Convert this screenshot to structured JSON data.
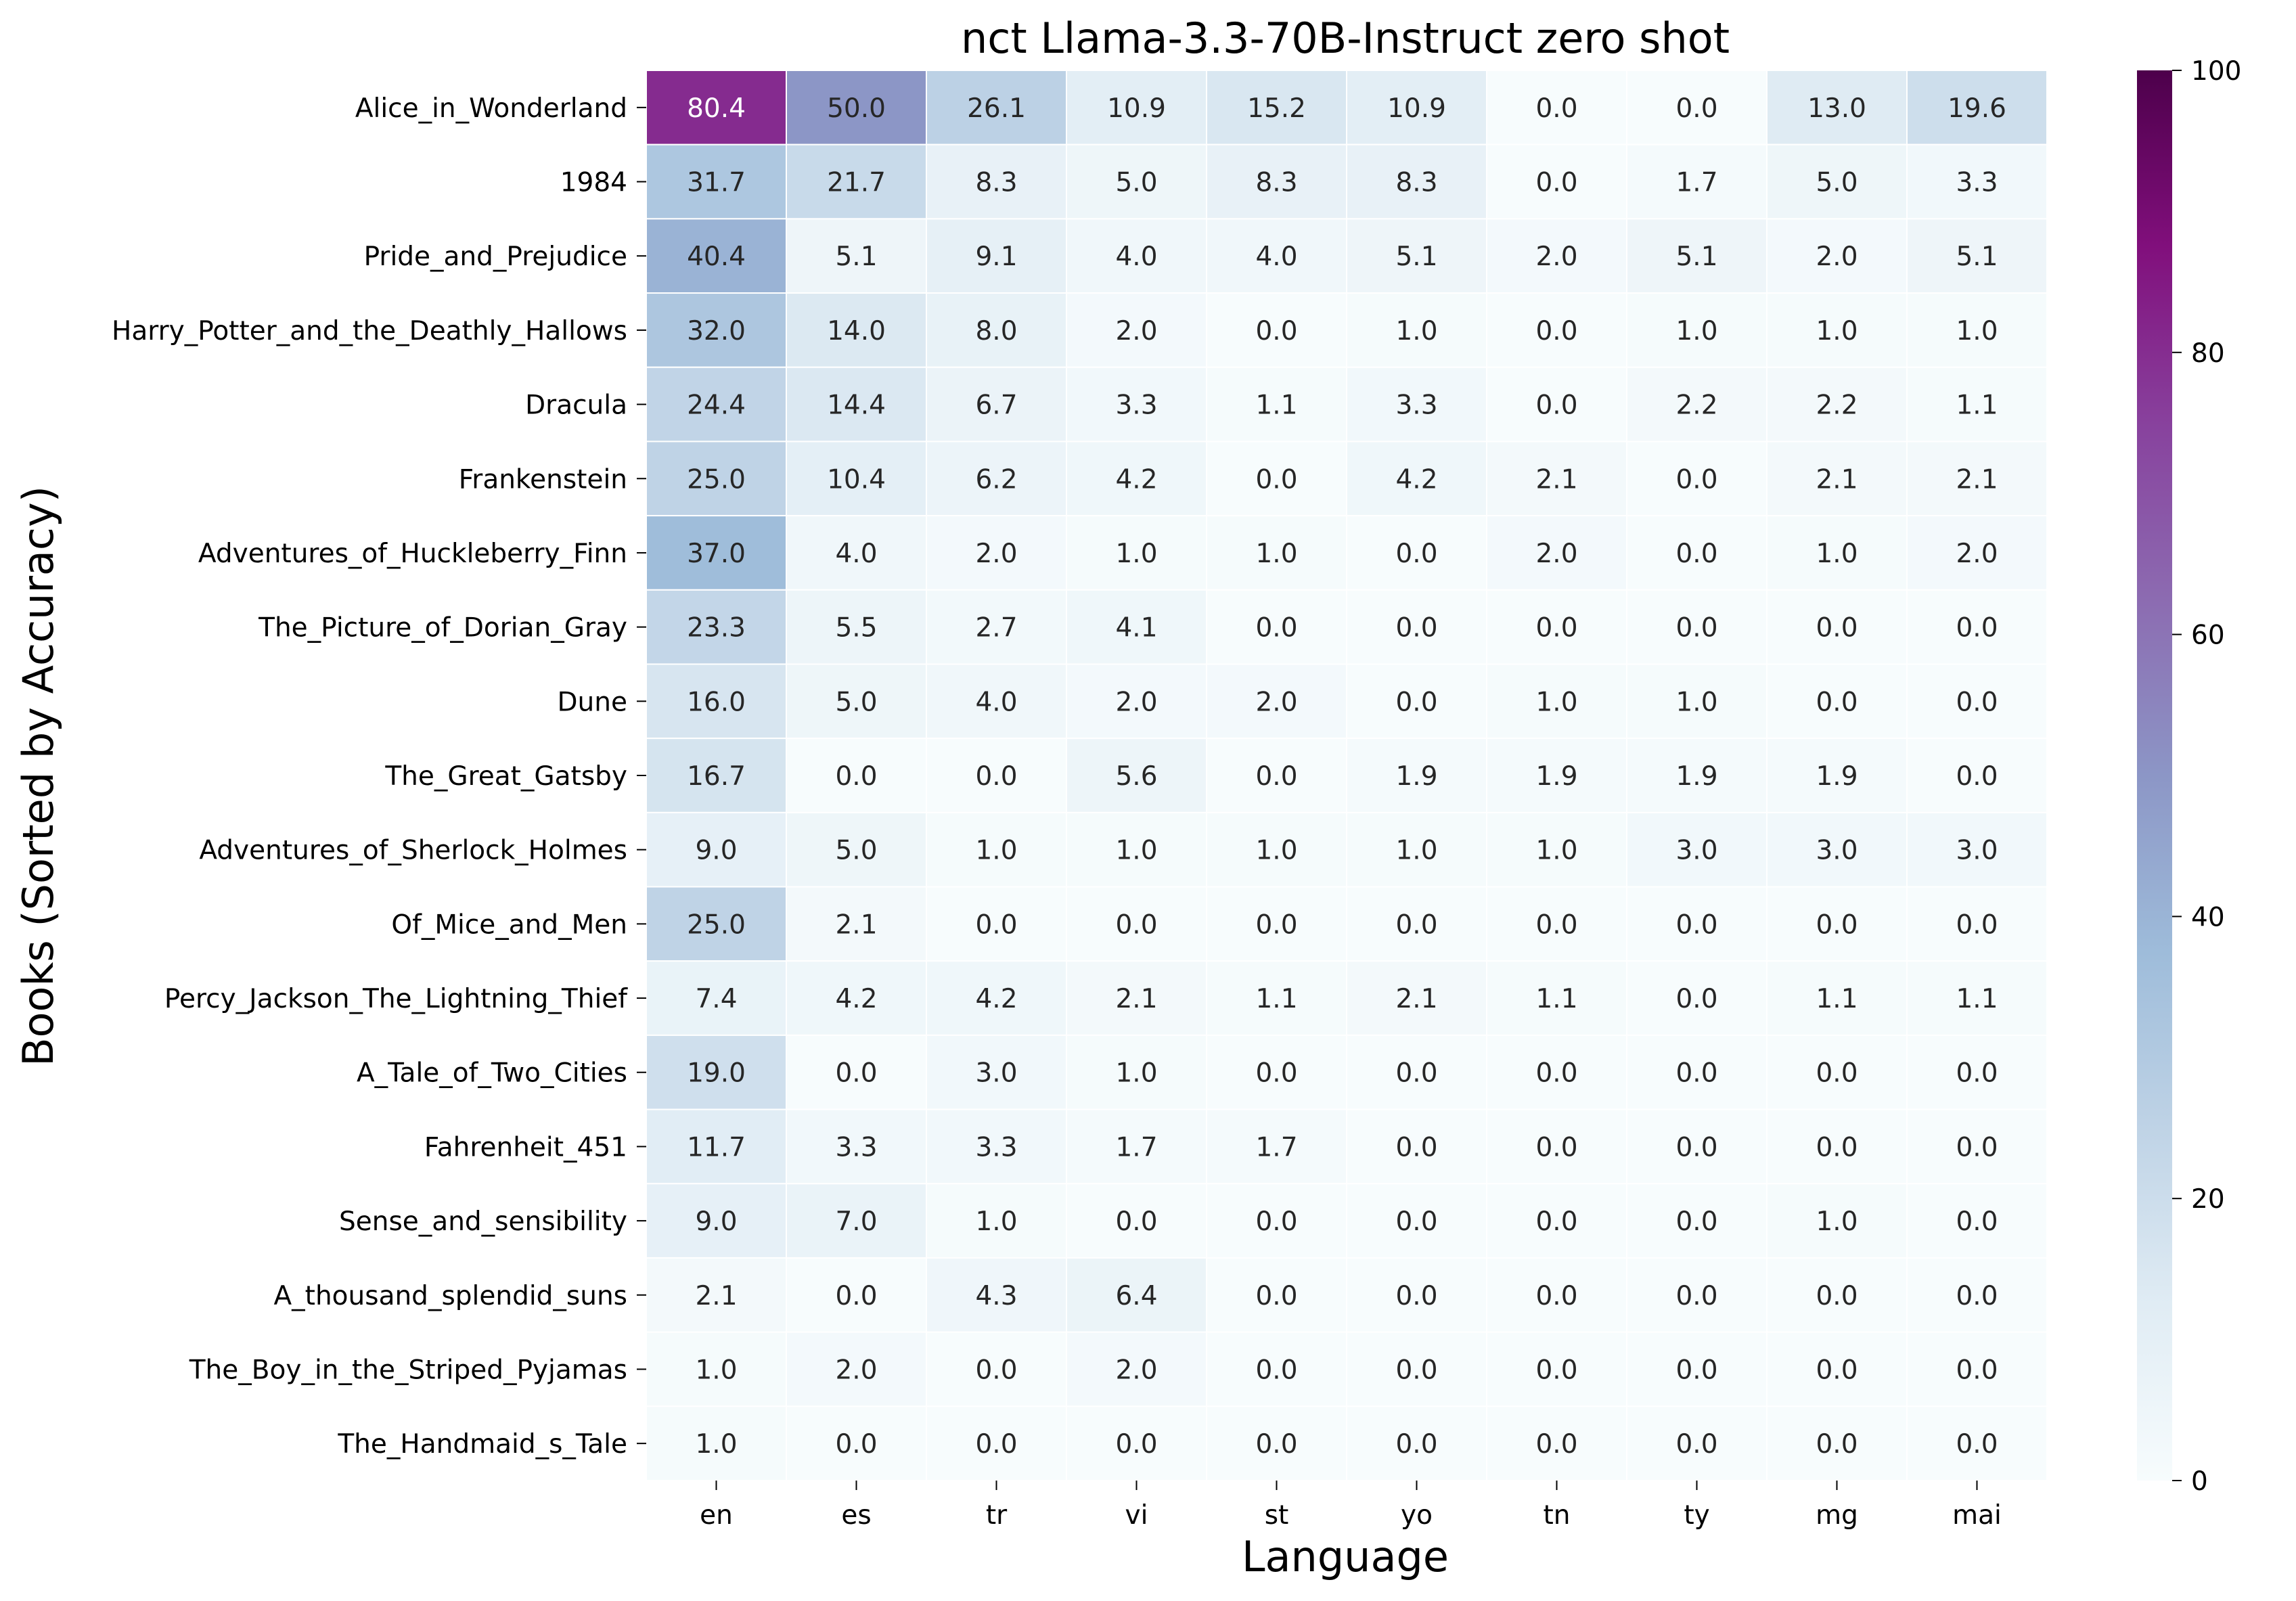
{
  "chart_data": {
    "type": "heatmap",
    "title": "nct Llama-3.3-70B-Instruct zero shot",
    "xlabel": "Language",
    "ylabel": "Books (Sorted by Accuracy)",
    "x": [
      "en",
      "es",
      "tr",
      "vi",
      "st",
      "yo",
      "tn",
      "ty",
      "mg",
      "mai"
    ],
    "y": [
      "Alice_in_Wonderland",
      "1984",
      "Pride_and_Prejudice",
      "Harry_Potter_and_the_Deathly_Hallows",
      "Dracula",
      "Frankenstein",
      "Adventures_of_Huckleberry_Finn",
      "The_Picture_of_Dorian_Gray",
      "Dune",
      "The_Great_Gatsby",
      "Adventures_of_Sherlock_Holmes",
      "Of_Mice_and_Men",
      "Percy_Jackson_The_Lightning_Thief",
      "A_Tale_of_Two_Cities",
      "Fahrenheit_451",
      "Sense_and_sensibility",
      "A_thousand_splendid_suns",
      "The_Boy_in_the_Striped_Pyjamas",
      "The_Handmaid_s_Tale"
    ],
    "values": [
      [
        80.4,
        50.0,
        26.1,
        10.9,
        15.2,
        10.9,
        0.0,
        0.0,
        13.0,
        19.6
      ],
      [
        31.7,
        21.7,
        8.3,
        5.0,
        8.3,
        8.3,
        0.0,
        1.7,
        5.0,
        3.3
      ],
      [
        40.4,
        5.1,
        9.1,
        4.0,
        4.0,
        5.1,
        2.0,
        5.1,
        2.0,
        5.1
      ],
      [
        32.0,
        14.0,
        8.0,
        2.0,
        0.0,
        1.0,
        0.0,
        1.0,
        1.0,
        1.0
      ],
      [
        24.4,
        14.4,
        6.7,
        3.3,
        1.1,
        3.3,
        0.0,
        2.2,
        2.2,
        1.1
      ],
      [
        25.0,
        10.4,
        6.2,
        4.2,
        0.0,
        4.2,
        2.1,
        0.0,
        2.1,
        2.1
      ],
      [
        37.0,
        4.0,
        2.0,
        1.0,
        1.0,
        0.0,
        2.0,
        0.0,
        1.0,
        2.0
      ],
      [
        23.3,
        5.5,
        2.7,
        4.1,
        0.0,
        0.0,
        0.0,
        0.0,
        0.0,
        0.0
      ],
      [
        16.0,
        5.0,
        4.0,
        2.0,
        2.0,
        0.0,
        1.0,
        1.0,
        0.0,
        0.0
      ],
      [
        16.7,
        0.0,
        0.0,
        5.6,
        0.0,
        1.9,
        1.9,
        1.9,
        1.9,
        0.0
      ],
      [
        9.0,
        5.0,
        1.0,
        1.0,
        1.0,
        1.0,
        1.0,
        3.0,
        3.0,
        3.0
      ],
      [
        25.0,
        2.1,
        0.0,
        0.0,
        0.0,
        0.0,
        0.0,
        0.0,
        0.0,
        0.0
      ],
      [
        7.4,
        4.2,
        4.2,
        2.1,
        1.1,
        2.1,
        1.1,
        0.0,
        1.1,
        1.1
      ],
      [
        19.0,
        0.0,
        3.0,
        1.0,
        0.0,
        0.0,
        0.0,
        0.0,
        0.0,
        0.0
      ],
      [
        11.7,
        3.3,
        3.3,
        1.7,
        1.7,
        0.0,
        0.0,
        0.0,
        0.0,
        0.0
      ],
      [
        9.0,
        7.0,
        1.0,
        0.0,
        0.0,
        0.0,
        0.0,
        0.0,
        1.0,
        0.0
      ],
      [
        2.1,
        0.0,
        4.3,
        6.4,
        0.0,
        0.0,
        0.0,
        0.0,
        0.0,
        0.0
      ],
      [
        1.0,
        2.0,
        0.0,
        2.0,
        0.0,
        0.0,
        0.0,
        0.0,
        0.0,
        0.0
      ],
      [
        1.0,
        0.0,
        0.0,
        0.0,
        0.0,
        0.0,
        0.0,
        0.0,
        0.0,
        0.0
      ]
    ],
    "colorbar": {
      "range": [
        0,
        100
      ],
      "ticks": [
        0,
        20,
        40,
        60,
        80,
        100
      ],
      "colormap": "BuPu",
      "stops": [
        "#f7fcfd",
        "#e0ecf4",
        "#bfd3e6",
        "#9ebcda",
        "#8c96c6",
        "#8c6bb1",
        "#88419d",
        "#810f7c",
        "#4d004b"
      ]
    },
    "grid": false
  }
}
